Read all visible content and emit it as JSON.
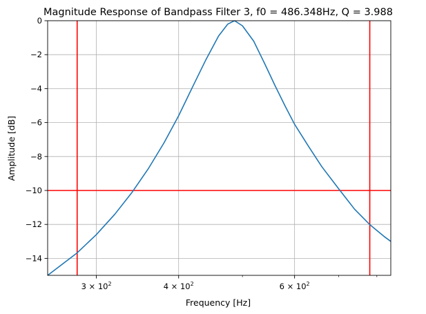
{
  "chart_data": {
    "type": "line",
    "title": "Magnitude Response of Bandpass Filter 3, f0 = 486.348Hz, Q = 3.988",
    "xlabel": "Frequency [Hz]",
    "ylabel": "Amplitude [dB]",
    "x_scale": "log",
    "xlim": [
      253,
      840
    ],
    "ylim": [
      -15,
      0
    ],
    "grid": true,
    "x_ticks": [
      {
        "value": 300,
        "base": "3",
        "exp": "2"
      },
      {
        "value": 400,
        "base": "4",
        "exp": "2"
      },
      {
        "value": 600,
        "base": "6",
        "exp": "2"
      }
    ],
    "x_minor_ticks": [
      500,
      700,
      800
    ],
    "y_ticks": [
      0,
      -2,
      -4,
      -6,
      -8,
      -10,
      -12,
      -14
    ],
    "y_tick_labels": [
      "0",
      "−2",
      "−4",
      "−6",
      "−8",
      "−10",
      "−12",
      "−14"
    ],
    "series": [
      {
        "color": "#1f77b4",
        "x": [
          253,
          280,
          300,
          320,
          340,
          360,
          380,
          400,
          420,
          440,
          460,
          475,
          486.348,
          500,
          520,
          540,
          560,
          580,
          600,
          630,
          660,
          700,
          740,
          780,
          820,
          840
        ],
        "y": [
          -15.0,
          -13.7,
          -12.6,
          -11.4,
          -10.1,
          -8.7,
          -7.2,
          -5.6,
          -3.9,
          -2.3,
          -0.9,
          -0.2,
          0.0,
          -0.3,
          -1.2,
          -2.5,
          -3.8,
          -5.0,
          -6.1,
          -7.4,
          -8.6,
          -9.9,
          -11.1,
          -12.0,
          -12.7,
          -13.0
        ]
      }
    ],
    "reference_lines": {
      "color": "#ff0000",
      "horizontal": [
        -10
      ],
      "vertical": [
        280.5,
        780.5
      ]
    }
  }
}
